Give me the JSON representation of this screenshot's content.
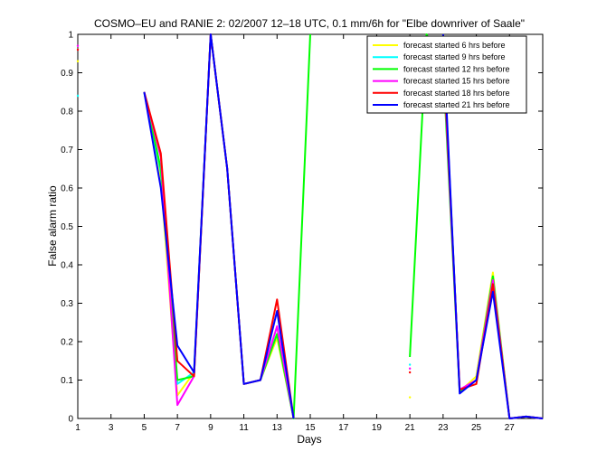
{
  "chart_data": {
    "type": "line",
    "title": "COSMO–EU and RANIE 2: 02/2007 12–18 UTC, 0.1 mm/6h for \"Elbe downriver of Saale\"",
    "xlabel": "Days",
    "ylabel": "False alarm ratio",
    "xlim": [
      1,
      29
    ],
    "ylim": [
      0,
      1
    ],
    "xticks": [
      1,
      3,
      5,
      7,
      9,
      11,
      13,
      15,
      17,
      19,
      21,
      23,
      25,
      27
    ],
    "xtick_labels": [
      "1",
      "3",
      "5",
      "7",
      "9",
      "11",
      "13",
      "15",
      "17",
      "19",
      "21",
      "23",
      "25",
      "27"
    ],
    "yticks": [
      0,
      0.1,
      0.2,
      0.3,
      0.4,
      0.5,
      0.6,
      0.7,
      0.8,
      0.9,
      1
    ],
    "ytick_labels": [
      "0",
      "0.1",
      "0.2",
      "0.3",
      "0.4",
      "0.5",
      "0.6",
      "0.7",
      "0.8",
      "0.9",
      "1"
    ],
    "grid": false,
    "legend_position": "top-right",
    "series": [
      {
        "name": "forecast started 6 hrs before",
        "color": "#ffff00",
        "points": [
          [
            1,
            0.93
          ],
          [
            5,
            0.85
          ],
          [
            6,
            0.62
          ],
          [
            7,
            0.06
          ],
          [
            8,
            0.12
          ],
          [
            9,
            1.0
          ],
          [
            10,
            0.65
          ],
          [
            11,
            0.09
          ],
          [
            12,
            0.1
          ],
          [
            13,
            0.21
          ],
          [
            14,
            0.0
          ],
          [
            21,
            0.055
          ],
          [
            23,
            0.98
          ],
          [
            24,
            0.07
          ],
          [
            25,
            0.11
          ],
          [
            26,
            0.38
          ],
          [
            27,
            0.0
          ],
          [
            28,
            0.005
          ],
          [
            29,
            0.0
          ]
        ]
      },
      {
        "name": "forecast started 9 hrs before",
        "color": "#00ffff",
        "points": [
          [
            1,
            0.84
          ],
          [
            5,
            0.85
          ],
          [
            6,
            0.64
          ],
          [
            7,
            0.09
          ],
          [
            8,
            0.12
          ],
          [
            9,
            1.0
          ],
          [
            10,
            0.65
          ],
          [
            11,
            0.09
          ],
          [
            12,
            0.1
          ],
          [
            13,
            0.22
          ],
          [
            14,
            0.0
          ],
          [
            21,
            0.14
          ],
          [
            23,
            0.98
          ],
          [
            24,
            0.07
          ],
          [
            25,
            0.1
          ],
          [
            26,
            0.37
          ],
          [
            27,
            0.0
          ],
          [
            28,
            0.005
          ],
          [
            29,
            0.0
          ]
        ]
      },
      {
        "name": "forecast started 12 hrs before",
        "color": "#00ff00",
        "points": [
          [
            5,
            0.85
          ],
          [
            6,
            0.65
          ],
          [
            7,
            0.1
          ],
          [
            8,
            0.11
          ],
          [
            9,
            1.0
          ],
          [
            10,
            0.65
          ],
          [
            11,
            0.09
          ],
          [
            12,
            0.1
          ],
          [
            13,
            0.22
          ],
          [
            14,
            0.0
          ],
          [
            15,
            1.0
          ],
          [
            21,
            0.16
          ],
          [
            22,
            1.0
          ],
          [
            23,
            0.92
          ],
          [
            24,
            0.07
          ],
          [
            25,
            0.1
          ],
          [
            26,
            0.37
          ],
          [
            27,
            0.0
          ],
          [
            28,
            0.005
          ],
          [
            29,
            0.0
          ]
        ]
      },
      {
        "name": "forecast started 15 hrs before",
        "color": "#ff00ff",
        "points": [
          [
            1,
            0.97
          ],
          [
            5,
            0.85
          ],
          [
            6,
            0.68
          ],
          [
            7,
            0.035
          ],
          [
            8,
            0.11
          ],
          [
            9,
            1.0
          ],
          [
            10,
            0.65
          ],
          [
            11,
            0.09
          ],
          [
            12,
            0.1
          ],
          [
            13,
            0.24
          ],
          [
            14,
            0.0
          ],
          [
            21,
            0.13
          ],
          [
            23,
            0.95
          ],
          [
            24,
            0.075
          ],
          [
            25,
            0.1
          ],
          [
            26,
            0.36
          ],
          [
            27,
            0.0
          ],
          [
            28,
            0.005
          ],
          [
            29,
            0.0
          ]
        ]
      },
      {
        "name": "forecast started 18 hrs before",
        "color": "#ff0000",
        "points": [
          [
            1,
            0.96
          ],
          [
            5,
            0.85
          ],
          [
            6,
            0.69
          ],
          [
            7,
            0.15
          ],
          [
            8,
            0.11
          ],
          [
            9,
            1.0
          ],
          [
            10,
            0.65
          ],
          [
            11,
            0.09
          ],
          [
            12,
            0.1
          ],
          [
            13,
            0.31
          ],
          [
            14,
            0.0
          ],
          [
            21,
            0.12
          ],
          [
            23,
            0.97
          ],
          [
            24,
            0.075
          ],
          [
            25,
            0.09
          ],
          [
            26,
            0.35
          ],
          [
            27,
            0.0
          ],
          [
            28,
            0.005
          ],
          [
            29,
            0.0
          ]
        ]
      },
      {
        "name": "forecast started 21 hrs before",
        "color": "#0000ff",
        "points": [
          [
            5,
            0.85
          ],
          [
            6,
            0.6
          ],
          [
            7,
            0.19
          ],
          [
            8,
            0.12
          ],
          [
            9,
            1.0
          ],
          [
            10,
            0.65
          ],
          [
            11,
            0.09
          ],
          [
            12,
            0.1
          ],
          [
            13,
            0.28
          ],
          [
            14,
            0.0
          ],
          [
            23,
            1.0
          ],
          [
            24,
            0.065
          ],
          [
            25,
            0.1
          ],
          [
            26,
            0.33
          ],
          [
            27,
            0.0
          ],
          [
            28,
            0.005
          ],
          [
            29,
            0.0
          ]
        ]
      }
    ]
  }
}
